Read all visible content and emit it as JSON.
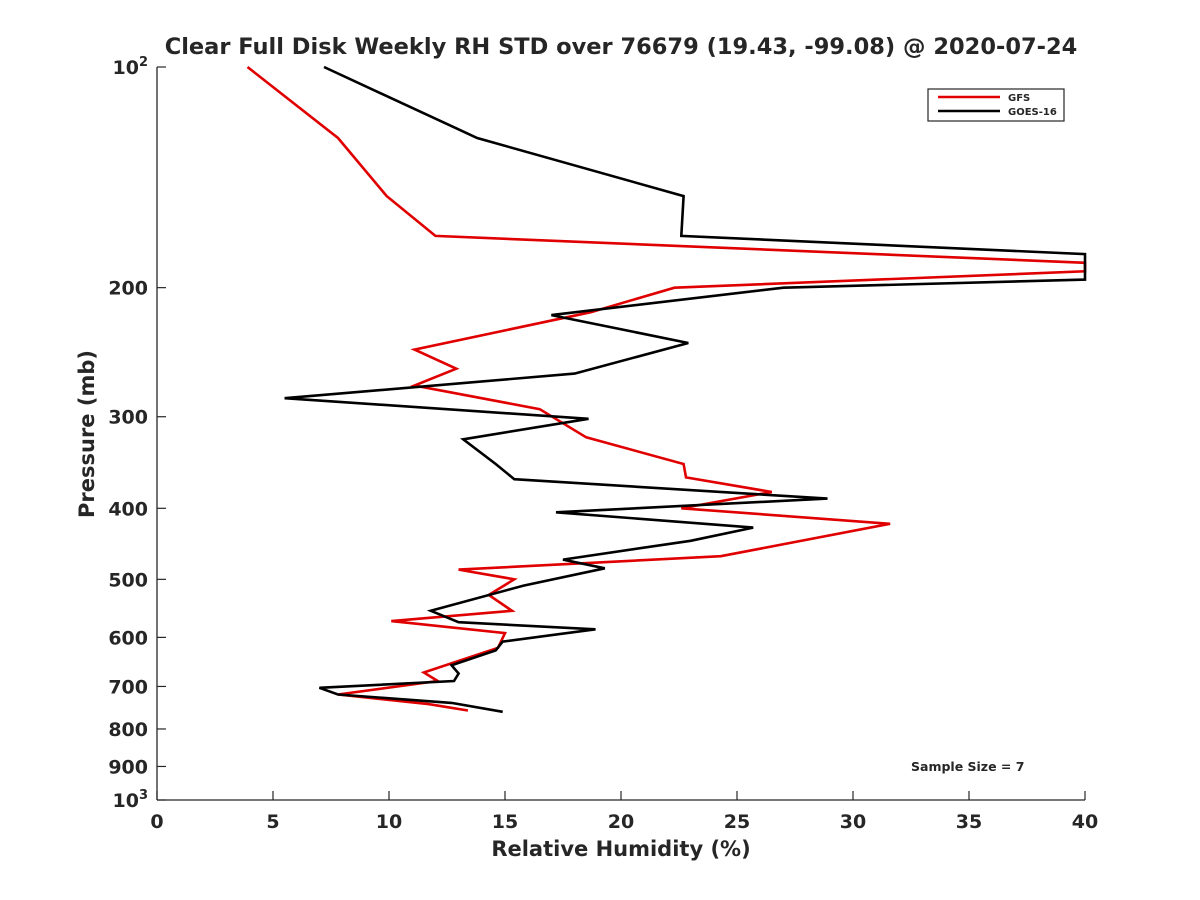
{
  "chart_data": {
    "type": "line",
    "title": "Clear Full Disk Weekly RH STD over 76679 (19.43, -99.08) @ 2020-07-24",
    "xlabel": "Relative Humidity (%)",
    "ylabel": "Pressure (mb)",
    "xlim": [
      0,
      40
    ],
    "ylim": [
      100,
      1000
    ],
    "yscale": "log",
    "y_reversed": true,
    "x_ticks": [
      0,
      5,
      10,
      15,
      20,
      25,
      30,
      35,
      40
    ],
    "x_tick_labels": [
      "0",
      "5",
      "10",
      "15",
      "20",
      "25",
      "30",
      "35",
      "40"
    ],
    "y_ticks": [
      100,
      200,
      300,
      400,
      500,
      600,
      700,
      800,
      900,
      1000
    ],
    "y_tick_labels": [
      {
        "base": "10",
        "exp": "2"
      },
      {
        "base": "200",
        "exp": ""
      },
      {
        "base": "300",
        "exp": ""
      },
      {
        "base": "400",
        "exp": ""
      },
      {
        "base": "500",
        "exp": ""
      },
      {
        "base": "600",
        "exp": ""
      },
      {
        "base": "700",
        "exp": ""
      },
      {
        "base": "800",
        "exp": ""
      },
      {
        "base": "900",
        "exp": ""
      },
      {
        "base": "10",
        "exp": "3"
      }
    ],
    "grid": false,
    "legend_position": "top-right",
    "annotation": "Sample Size = 7",
    "series": [
      {
        "name": "GFS",
        "color": "#e00000",
        "points": [
          [
            3.9,
            100
          ],
          [
            7.8,
            125
          ],
          [
            9.9,
            150
          ],
          [
            12.0,
            170
          ],
          [
            40,
            185
          ],
          [
            40,
            190
          ],
          [
            22.3,
            200
          ],
          [
            18.7,
            216
          ],
          [
            11.1,
            243
          ],
          [
            12.9,
            258
          ],
          [
            11.1,
            272
          ],
          [
            16.5,
            293
          ],
          [
            18.5,
            320
          ],
          [
            22.7,
            348
          ],
          [
            22.8,
            363
          ],
          [
            26.5,
            380
          ],
          [
            22.6,
            400
          ],
          [
            31.6,
            420
          ],
          [
            24.3,
            465
          ],
          [
            13.0,
            485
          ],
          [
            15.4,
            500
          ],
          [
            14.3,
            525
          ],
          [
            15.3,
            552
          ],
          [
            10.1,
            570
          ],
          [
            15.0,
            592
          ],
          [
            14.7,
            620
          ],
          [
            11.5,
            670
          ],
          [
            12.1,
            688
          ],
          [
            7.8,
            718
          ],
          [
            11.7,
            740
          ],
          [
            13.4,
            755
          ]
        ]
      },
      {
        "name": "GOES-16",
        "color": "#000000",
        "points": [
          [
            7.2,
            100
          ],
          [
            13.8,
            125
          ],
          [
            22.7,
            150
          ],
          [
            22.6,
            170
          ],
          [
            40,
            180
          ],
          [
            40,
            195
          ],
          [
            27.0,
            200
          ],
          [
            17.0,
            218
          ],
          [
            22.9,
            238
          ],
          [
            18.0,
            262
          ],
          [
            5.5,
            283
          ],
          [
            18.6,
            302
          ],
          [
            13.2,
            322
          ],
          [
            14.6,
            348
          ],
          [
            15.4,
            365
          ],
          [
            28.9,
            388
          ],
          [
            17.2,
            405
          ],
          [
            25.7,
            425
          ],
          [
            23.0,
            443
          ],
          [
            17.5,
            470
          ],
          [
            19.3,
            483
          ],
          [
            15.8,
            510
          ],
          [
            11.8,
            552
          ],
          [
            13.0,
            572
          ],
          [
            18.9,
            585
          ],
          [
            14.9,
            608
          ],
          [
            14.6,
            625
          ],
          [
            12.7,
            655
          ],
          [
            13.0,
            672
          ],
          [
            12.8,
            688
          ],
          [
            7.0,
            703
          ],
          [
            7.8,
            718
          ],
          [
            12.7,
            737
          ],
          [
            14.9,
            758
          ]
        ]
      }
    ]
  }
}
